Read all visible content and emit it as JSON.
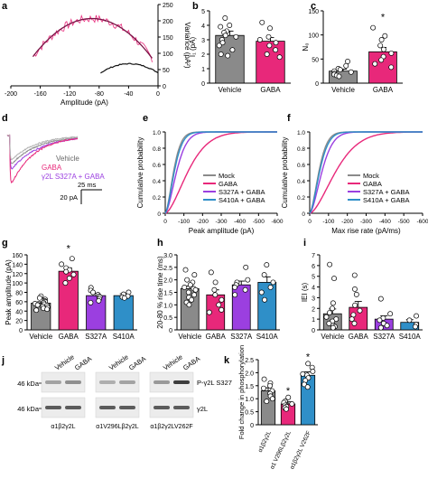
{
  "colors": {
    "vehicle": "#8a8a8a",
    "gaba": "#e8287a",
    "s327a": "#9b3fe0",
    "s410a": "#2f8fc8",
    "dark": "#222222",
    "light": "#cfcfcf",
    "blot": "#d9d9d9"
  },
  "panels": {
    "a": {
      "letter": "a",
      "xlabel": "Amplitude (pA)",
      "ylabel": "Variance (pA²)",
      "xticks": [
        "-200",
        "-160",
        "-120",
        "-80",
        "-40",
        "0"
      ],
      "yticks": [
        "0",
        "50",
        "100",
        "150",
        "200",
        "250"
      ]
    },
    "b": {
      "letter": "b",
      "ylabel": "I₁ (pA)",
      "yticks": [
        "0",
        "1",
        "2",
        "3",
        "4",
        "5"
      ],
      "categories": [
        "Vehicle",
        "GABA"
      ],
      "values": [
        3.3,
        2.9
      ],
      "errors": [
        0.3,
        0.25
      ],
      "points": [
        [
          4.5,
          4.0,
          3.9,
          3.6,
          3.5,
          3.3,
          3.2,
          3.0,
          2.8,
          2.6,
          2.3,
          2.0,
          1.9
        ],
        [
          4.2,
          3.8,
          3.2,
          3.0,
          2.8,
          2.6,
          2.3,
          2.0,
          1.8
        ]
      ]
    },
    "c": {
      "letter": "c",
      "ylabel": "N₀",
      "yticks": [
        "0",
        "50",
        "100",
        "150"
      ],
      "star": "*",
      "categories": [
        "Vehicle",
        "GABA"
      ],
      "values": [
        25,
        65
      ],
      "errors": [
        4,
        9
      ],
      "points": [
        [
          45,
          36,
          30,
          28,
          25,
          23,
          20,
          18,
          16,
          14
        ],
        [
          115,
          98,
          90,
          78,
          70,
          62,
          55,
          48,
          40,
          33
        ]
      ]
    },
    "d": {
      "letter": "d",
      "legend": [
        "Vehicle",
        "GABA",
        "γ2L S327A + GABA"
      ],
      "scale_time": "25 ms",
      "scale_amp": "20 pA"
    },
    "e": {
      "letter": "e",
      "xlabel": "Peak amplitude (pA)",
      "ylabel": "Cumulative probability",
      "xticks": [
        "0",
        "-100",
        "-200",
        "-300",
        "-400",
        "-500",
        "-600"
      ],
      "yticks": [
        "0",
        "0.2",
        "0.4",
        "0.6",
        "0.8",
        "1.0"
      ],
      "legend": [
        "Mock",
        "GABA",
        "S327A + GABA",
        "S410A + GABA"
      ]
    },
    "f": {
      "letter": "f",
      "xlabel": "Max rise rate (pA/ms)",
      "ylabel": "Cumulative probability",
      "xticks": [
        "0",
        "-100",
        "-200",
        "-300",
        "-400",
        "-500",
        "-600"
      ],
      "yticks": [
        "0",
        "0.2",
        "0.4",
        "0.6",
        "0.8",
        "1.0"
      ],
      "legend": [
        "Mock",
        "GABA",
        "S327A + GABA",
        "S410A + GABA"
      ]
    },
    "g": {
      "letter": "g",
      "ylabel": "Peak amplitude (pA)",
      "yticks": [
        "0",
        "20",
        "40",
        "60",
        "80",
        "100",
        "120",
        "140",
        "160"
      ],
      "star": "*",
      "categories": [
        "Vehicle",
        "GABA",
        "S327A",
        "S410A"
      ],
      "values": [
        57,
        125,
        73,
        73
      ],
      "errors": [
        3,
        7,
        5,
        4
      ],
      "points": [
        [
          72,
          68,
          65,
          62,
          60,
          58,
          56,
          55,
          53,
          52,
          50,
          48,
          46,
          44,
          42
        ],
        [
          152,
          140,
          132,
          128,
          124,
          118,
          110,
          100
        ],
        [
          90,
          84,
          80,
          75,
          72,
          70,
          66,
          62,
          58
        ],
        [
          80,
          76,
          72,
          70,
          68
        ]
      ]
    },
    "h": {
      "letter": "h",
      "ylabel": "20-80 % rise time (ms)",
      "yticks": [
        "0",
        "0.5",
        "1.0",
        "1.5",
        "2.0",
        "2.5",
        "3.0"
      ],
      "categories": [
        "Vehicle",
        "GABA",
        "S327A",
        "S410A"
      ],
      "values": [
        1.65,
        1.4,
        1.8,
        1.9
      ],
      "errors": [
        0.1,
        0.2,
        0.15,
        0.22
      ],
      "points": [
        [
          2.4,
          2.2,
          2.0,
          1.9,
          1.8,
          1.7,
          1.65,
          1.6,
          1.5,
          1.4,
          1.3,
          1.2,
          1.1,
          1.0
        ],
        [
          2.3,
          1.9,
          1.6,
          1.4,
          1.2,
          1.0,
          0.8,
          0.7
        ],
        [
          2.5,
          2.0,
          1.9,
          1.8,
          1.7,
          1.6,
          1.4
        ],
        [
          2.6,
          2.2,
          1.9,
          1.7,
          1.5,
          1.2
        ]
      ]
    },
    "i": {
      "letter": "i",
      "ylabel": "IEI (s)",
      "yticks": [
        "0",
        "1",
        "2",
        "3",
        "4",
        "5",
        "6",
        "7"
      ],
      "categories": [
        "Vehicle",
        "GABA",
        "S327A",
        "S410A"
      ],
      "values": [
        1.5,
        2.1,
        1.0,
        0.7
      ],
      "errors": [
        0.45,
        0.55,
        0.3,
        0.25
      ],
      "points": [
        [
          6.1,
          4.8,
          2.5,
          2.0,
          1.6,
          1.2,
          1.0,
          0.8,
          0.6,
          0.4,
          0.3,
          0.2
        ],
        [
          5.1,
          3.8,
          3.3,
          2.3,
          1.8,
          1.4,
          1.0,
          0.6
        ],
        [
          2.9,
          1.5,
          1.1,
          0.9,
          0.6,
          0.4,
          0.2
        ],
        [
          1.3,
          0.9,
          0.5,
          0.3
        ]
      ]
    },
    "j": {
      "letter": "j",
      "lanes": [
        "Vehicle",
        "GABA",
        "Vehicle",
        "GABA",
        "Vehicle",
        "GABA"
      ],
      "markers": [
        "46 kDa",
        "46 kDa"
      ],
      "right_labels": [
        "P-γ2L S327",
        "γ2L"
      ],
      "groups": [
        "α1β2γ2L",
        "α1V296Lβ2γ2L",
        "α1β2γ2LV262F"
      ]
    },
    "k": {
      "letter": "k",
      "ylabel": "Fold change in phosphorylation",
      "yticks": [
        "0",
        "0.5",
        "1.0",
        "1.5",
        "2.0",
        "2.5"
      ],
      "categories": [
        "α1β2γ2L",
        "α1 V296Lβ2γ2L",
        "α1β2γ2L V262F"
      ],
      "values": [
        1.3,
        0.8,
        1.9
      ],
      "errors": [
        0.12,
        0.08,
        0.13
      ],
      "stars": [
        "",
        "*",
        "*"
      ],
      "points": [
        [
          1.75,
          1.6,
          1.5,
          1.4,
          1.3,
          1.2,
          1.1,
          1.0,
          0.9
        ],
        [
          1.05,
          0.9,
          0.85,
          0.8,
          0.75,
          0.7,
          0.65,
          0.6
        ],
        [
          2.35,
          2.2,
          2.05,
          1.95,
          1.9,
          1.8,
          1.7,
          1.55,
          1.45
        ]
      ]
    }
  }
}
